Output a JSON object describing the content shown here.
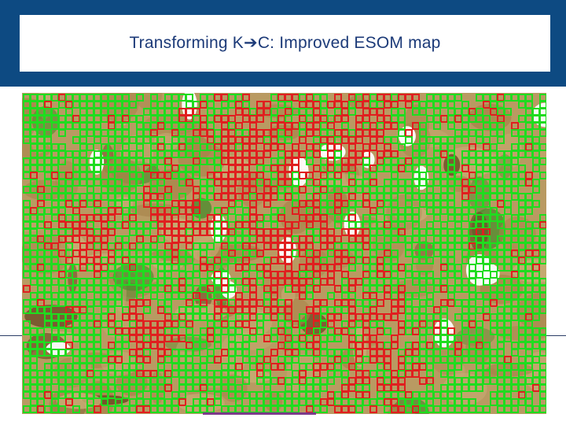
{
  "slide": {
    "title_prefix": "Transforming K",
    "title_arrow": "➔",
    "title_suffix": "C: Improved ESOM map"
  },
  "map": {
    "description_type": "esom-u-matrix",
    "colors": {
      "terrain_light": "#c9ad75",
      "terrain_mid": "#a8844a",
      "terrain_dark": "#6b4a24",
      "valley_green": "#4e8a2e",
      "node_green": "#1fdc1f",
      "node_red": "#e01f1f",
      "peak_white": "#ffffff",
      "header_blue": "#0d4a82",
      "title_text": "#1c3a78"
    }
  }
}
